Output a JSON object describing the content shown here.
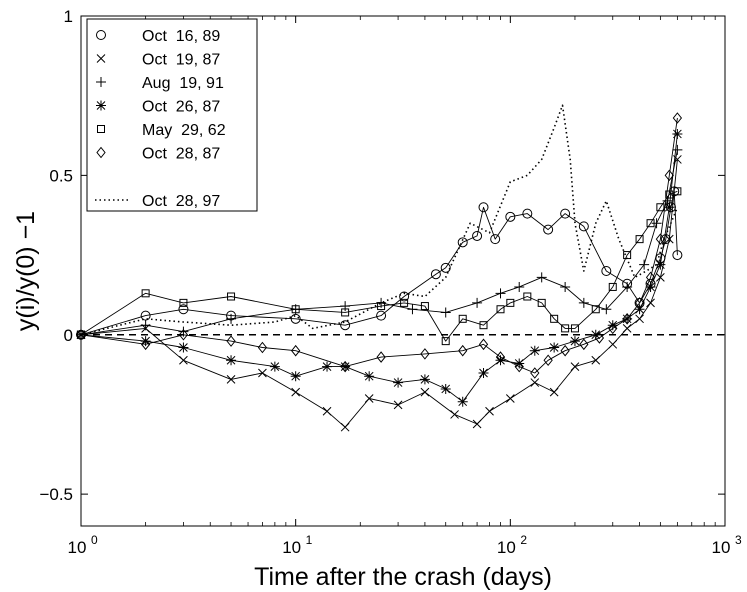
{
  "chart_data": {
    "type": "line",
    "xscale": "log",
    "xlim": [
      1,
      1000
    ],
    "ylim": [
      -0.6,
      1
    ],
    "xlabel": "Time after the crash (days)",
    "ylabel": "y(i)/y(0) −1",
    "x_ticks": [
      {
        "value": 1,
        "base": "10",
        "exp": "0"
      },
      {
        "value": 10,
        "base": "10",
        "exp": "1"
      },
      {
        "value": 100,
        "base": "10",
        "exp": "2"
      },
      {
        "value": 1000,
        "base": "10",
        "exp": "3"
      }
    ],
    "y_ticks": [
      {
        "value": -0.5,
        "label": "−0.5"
      },
      {
        "value": 0,
        "label": "0"
      },
      {
        "value": 0.5,
        "label": "0.5"
      },
      {
        "value": 1,
        "label": "1"
      }
    ],
    "reference_line": {
      "y": 0,
      "style": "dashed"
    },
    "series": [
      {
        "name": "Oct  16, 89",
        "marker": "circle",
        "style": "solid",
        "x": [
          1,
          2,
          3,
          5,
          10,
          17,
          25,
          32,
          45,
          50,
          60,
          70,
          75,
          85,
          100,
          120,
          150,
          180,
          220,
          280,
          350,
          400,
          450,
          500,
          530,
          560,
          580,
          600
        ],
        "y": [
          0,
          0.06,
          0.08,
          0.06,
          0.05,
          0.03,
          0.06,
          0.12,
          0.19,
          0.21,
          0.29,
          0.31,
          0.4,
          0.3,
          0.37,
          0.38,
          0.33,
          0.38,
          0.34,
          0.2,
          0.16,
          0.1,
          0.16,
          0.24,
          0.3,
          0.4,
          0.45,
          0.25
        ]
      },
      {
        "name": "Oct  19, 87",
        "marker": "x",
        "style": "solid",
        "x": [
          1,
          2,
          3,
          5,
          7,
          10,
          14,
          17,
          22,
          30,
          40,
          55,
          70,
          80,
          100,
          130,
          160,
          200,
          250,
          300,
          350,
          400,
          450,
          500,
          550,
          600
        ],
        "y": [
          0,
          0.02,
          -0.08,
          -0.14,
          -0.12,
          -0.18,
          -0.24,
          -0.29,
          -0.2,
          -0.22,
          -0.18,
          -0.25,
          -0.28,
          -0.24,
          -0.2,
          -0.15,
          -0.18,
          -0.1,
          -0.08,
          -0.03,
          0.02,
          0.05,
          0.1,
          0.18,
          0.3,
          0.55
        ]
      },
      {
        "name": "Aug  19, 91",
        "marker": "plus",
        "style": "solid",
        "x": [
          1,
          2,
          3,
          5,
          10,
          17,
          25,
          35,
          50,
          70,
          90,
          110,
          140,
          180,
          220,
          280,
          350,
          420,
          480,
          540,
          600
        ],
        "y": [
          0,
          0.03,
          0.01,
          0.05,
          0.08,
          0.09,
          0.1,
          0.08,
          0.07,
          0.1,
          0.13,
          0.15,
          0.18,
          0.15,
          0.1,
          0.08,
          0.15,
          0.22,
          0.35,
          0.42,
          0.58
        ]
      },
      {
        "name": "Oct  26, 87",
        "marker": "star",
        "style": "solid",
        "x": [
          1,
          2,
          3,
          5,
          8,
          10,
          14,
          17,
          22,
          30,
          40,
          50,
          60,
          75,
          90,
          110,
          130,
          160,
          200,
          250,
          300,
          350,
          400,
          450,
          500,
          550,
          600
        ],
        "y": [
          0,
          -0.02,
          -0.04,
          -0.08,
          -0.1,
          -0.13,
          -0.1,
          -0.1,
          -0.13,
          -0.15,
          -0.14,
          -0.17,
          -0.21,
          -0.12,
          -0.08,
          -0.09,
          -0.05,
          -0.04,
          -0.02,
          0.0,
          0.03,
          0.05,
          0.08,
          0.15,
          0.22,
          0.4,
          0.63
        ]
      },
      {
        "name": "May  29, 62",
        "marker": "square",
        "style": "solid",
        "x": [
          1,
          2,
          3,
          5,
          10,
          17,
          25,
          32,
          40,
          50,
          60,
          75,
          90,
          100,
          120,
          140,
          160,
          180,
          200,
          250,
          300,
          350,
          400,
          450,
          500,
          550,
          600
        ],
        "y": [
          0,
          0.13,
          0.1,
          0.12,
          0.08,
          0.07,
          0.09,
          0.1,
          0.09,
          -0.02,
          0.05,
          0.03,
          0.08,
          0.1,
          0.12,
          0.1,
          0.05,
          0.02,
          0.02,
          0.08,
          0.15,
          0.25,
          0.3,
          0.35,
          0.4,
          0.44,
          0.45
        ]
      },
      {
        "name": "Oct  28, 87",
        "marker": "diamond",
        "style": "solid",
        "x": [
          1,
          2,
          3,
          5,
          7,
          10,
          17,
          25,
          40,
          60,
          75,
          90,
          110,
          130,
          150,
          180,
          220,
          260,
          300,
          350,
          400,
          450,
          500,
          550,
          600
        ],
        "y": [
          0,
          -0.03,
          0.0,
          -0.02,
          -0.04,
          -0.05,
          -0.1,
          -0.07,
          -0.06,
          -0.05,
          -0.03,
          -0.07,
          -0.1,
          -0.12,
          -0.08,
          -0.05,
          -0.03,
          -0.01,
          0.02,
          0.05,
          0.1,
          0.18,
          0.3,
          0.5,
          0.68
        ]
      },
      {
        "name": "Oct  28, 97",
        "marker": "none",
        "style": "dotted",
        "x": [
          1,
          2,
          3,
          5,
          8,
          10,
          12,
          17,
          25,
          32,
          40,
          50,
          65,
          80,
          100,
          120,
          140,
          160,
          175,
          190,
          200,
          220,
          250,
          280,
          320,
          380,
          430,
          480,
          520,
          560,
          600
        ],
        "y": [
          0,
          0.05,
          0.04,
          0.03,
          0.04,
          0.06,
          0.02,
          0.04,
          0.1,
          0.13,
          0.12,
          0.18,
          0.35,
          0.32,
          0.48,
          0.5,
          0.55,
          0.65,
          0.72,
          0.55,
          0.35,
          0.2,
          0.35,
          0.42,
          0.3,
          0.18,
          0.2,
          0.22,
          0.3,
          0.35,
          0.4
        ]
      }
    ]
  }
}
